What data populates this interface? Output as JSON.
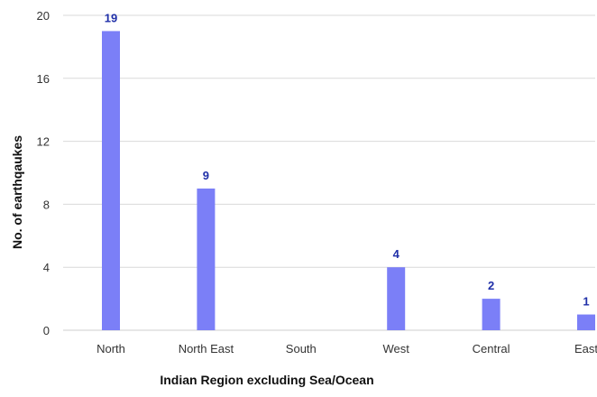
{
  "chart_data": {
    "type": "bar",
    "title": "",
    "xlabel": "Indian Region excluding Sea/Ocean",
    "ylabel": "No. of earthqaukes",
    "categories": [
      "North",
      "North East",
      "South",
      "West",
      "Central",
      "East"
    ],
    "values": [
      19,
      9,
      0,
      4,
      2,
      1
    ],
    "data_labels": [
      "19",
      "9",
      "",
      "4",
      "2",
      "1"
    ],
    "ylim": [
      0,
      20
    ],
    "yticks": [
      0,
      4,
      8,
      12,
      16,
      20
    ],
    "grid": true,
    "legend": "none",
    "colors": {
      "bar": "#7b7ff7",
      "data_label": "#1f2fa8",
      "grid": "#d9d9d9"
    }
  }
}
